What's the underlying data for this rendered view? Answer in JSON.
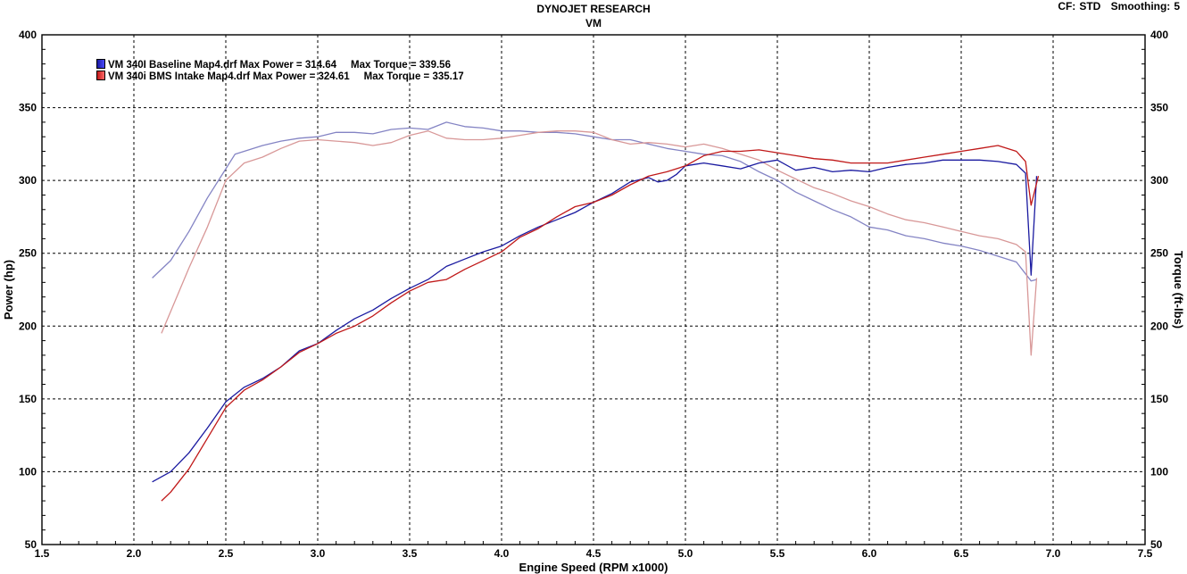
{
  "header": {
    "title": "DYNOJET RESEARCH",
    "subtitle": "VM",
    "cf_label": "CF:",
    "cf_value": "STD",
    "smoothing_label": "Smoothing:",
    "smoothing_value": "5"
  },
  "chart_data": {
    "type": "line",
    "title": "DYNOJET RESEARCH",
    "subtitle": "VM",
    "xlabel": "Engine Speed (RPM x1000)",
    "ylabel": "Power (hp)",
    "y2label": "Torque (ft-lbs)",
    "xlim": [
      1.5,
      7.5
    ],
    "ylim": [
      50,
      400
    ],
    "y2lim": [
      50,
      400
    ],
    "x_ticks": [
      "1.5",
      "2.0",
      "2.5",
      "3.0",
      "3.5",
      "4.0",
      "4.5",
      "5.0",
      "5.5",
      "6.0",
      "6.5",
      "7.0",
      "7.5"
    ],
    "y_ticks": [
      "50",
      "100",
      "150",
      "200",
      "250",
      "300",
      "350",
      "400"
    ],
    "grid": true,
    "legend_position": "top-left",
    "legend": [
      {
        "file": "VM 340I Baseline Map4.drf",
        "max_power_label": "Max Power = 314.64",
        "max_torque_label": "Max Torque = 339.56",
        "color": "#1a1aa0"
      },
      {
        "file": "VM 340i BMS Intake Map4.drf",
        "max_power_label": "Max Power = 324.61",
        "max_torque_label": "Max Torque = 335.17",
        "color": "#c01818"
      }
    ],
    "series": [
      {
        "name": "VM 340I Baseline Map4.drf",
        "quantity": "Power",
        "color": "#1a1aa0",
        "x": [
          2.1,
          2.2,
          2.3,
          2.4,
          2.5,
          2.6,
          2.7,
          2.8,
          2.9,
          3.0,
          3.1,
          3.2,
          3.3,
          3.4,
          3.5,
          3.6,
          3.7,
          3.8,
          3.9,
          4.0,
          4.1,
          4.2,
          4.3,
          4.4,
          4.5,
          4.6,
          4.7,
          4.8,
          4.85,
          4.9,
          4.95,
          5.0,
          5.05,
          5.1,
          5.2,
          5.3,
          5.4,
          5.5,
          5.6,
          5.7,
          5.8,
          5.9,
          6.0,
          6.1,
          6.2,
          6.3,
          6.4,
          6.5,
          6.6,
          6.7,
          6.8,
          6.85,
          6.88,
          6.91
        ],
        "values": [
          93,
          100,
          113,
          130,
          148,
          158,
          164,
          172,
          183,
          188,
          197,
          205,
          211,
          219,
          226,
          232,
          241,
          246,
          251,
          255,
          262,
          268,
          273,
          278,
          285,
          291,
          299,
          302,
          299,
          300,
          304,
          310,
          311,
          312,
          310,
          308,
          312,
          314,
          307,
          309,
          306,
          307,
          306,
          309,
          311,
          312,
          314,
          314,
          314,
          313,
          311,
          305,
          235,
          303
        ]
      },
      {
        "name": "VM 340i BMS Intake Map4.drf",
        "quantity": "Power",
        "color": "#c01818",
        "x": [
          2.15,
          2.2,
          2.3,
          2.4,
          2.5,
          2.6,
          2.7,
          2.8,
          2.9,
          3.0,
          3.1,
          3.2,
          3.3,
          3.4,
          3.5,
          3.6,
          3.7,
          3.8,
          3.9,
          4.0,
          4.1,
          4.2,
          4.3,
          4.4,
          4.5,
          4.6,
          4.7,
          4.8,
          4.9,
          5.0,
          5.1,
          5.2,
          5.3,
          5.4,
          5.5,
          5.6,
          5.7,
          5.8,
          5.9,
          6.0,
          6.1,
          6.2,
          6.3,
          6.4,
          6.5,
          6.6,
          6.7,
          6.8,
          6.85,
          6.88,
          6.92
        ],
        "values": [
          80,
          86,
          102,
          123,
          144,
          156,
          163,
          172,
          182,
          188,
          195,
          200,
          207,
          216,
          224,
          230,
          232,
          239,
          245,
          251,
          261,
          267,
          275,
          282,
          285,
          290,
          297,
          303,
          306,
          310,
          317,
          320,
          320,
          321,
          319,
          317,
          315,
          314,
          312,
          312,
          312,
          314,
          316,
          318,
          320,
          322,
          324,
          320,
          313,
          283,
          303
        ]
      },
      {
        "name": "VM 340I Baseline Map4.drf",
        "quantity": "Torque",
        "color": "#8484c4",
        "x": [
          2.1,
          2.2,
          2.3,
          2.4,
          2.5,
          2.55,
          2.6,
          2.7,
          2.8,
          2.9,
          3.0,
          3.1,
          3.2,
          3.3,
          3.4,
          3.5,
          3.6,
          3.7,
          3.8,
          3.9,
          4.0,
          4.1,
          4.2,
          4.3,
          4.4,
          4.5,
          4.6,
          4.7,
          4.8,
          4.9,
          5.0,
          5.1,
          5.2,
          5.3,
          5.4,
          5.5,
          5.6,
          5.7,
          5.8,
          5.9,
          6.0,
          6.1,
          6.2,
          6.3,
          6.4,
          6.5,
          6.6,
          6.7,
          6.8,
          6.88,
          6.91
        ],
        "values": [
          233,
          245,
          265,
          288,
          308,
          318,
          320,
          324,
          327,
          329,
          330,
          333,
          333,
          332,
          335,
          336,
          335,
          340,
          337,
          336,
          334,
          334,
          333,
          333,
          332,
          330,
          328,
          328,
          325,
          322,
          320,
          318,
          317,
          313,
          306,
          300,
          292,
          286,
          280,
          275,
          268,
          266,
          262,
          260,
          257,
          255,
          252,
          248,
          244,
          231,
          232
        ]
      },
      {
        "name": "VM 340i BMS Intake Map4.drf",
        "quantity": "Torque",
        "color": "#d89898",
        "x": [
          2.15,
          2.2,
          2.3,
          2.4,
          2.5,
          2.6,
          2.7,
          2.8,
          2.9,
          3.0,
          3.1,
          3.2,
          3.3,
          3.4,
          3.5,
          3.6,
          3.7,
          3.8,
          3.9,
          4.0,
          4.1,
          4.2,
          4.3,
          4.4,
          4.5,
          4.6,
          4.7,
          4.8,
          4.9,
          5.0,
          5.1,
          5.2,
          5.3,
          5.4,
          5.5,
          5.6,
          5.7,
          5.8,
          5.9,
          6.0,
          6.1,
          6.2,
          6.3,
          6.4,
          6.5,
          6.6,
          6.7,
          6.8,
          6.85,
          6.88,
          6.91
        ],
        "values": [
          195,
          210,
          240,
          268,
          300,
          312,
          316,
          322,
          327,
          328,
          327,
          326,
          324,
          326,
          331,
          334,
          329,
          328,
          328,
          329,
          331,
          333,
          334,
          334,
          333,
          328,
          325,
          326,
          325,
          323,
          325,
          322,
          318,
          314,
          307,
          301,
          295,
          291,
          286,
          282,
          277,
          273,
          271,
          268,
          265,
          262,
          260,
          256,
          251,
          180,
          233
        ]
      }
    ]
  }
}
